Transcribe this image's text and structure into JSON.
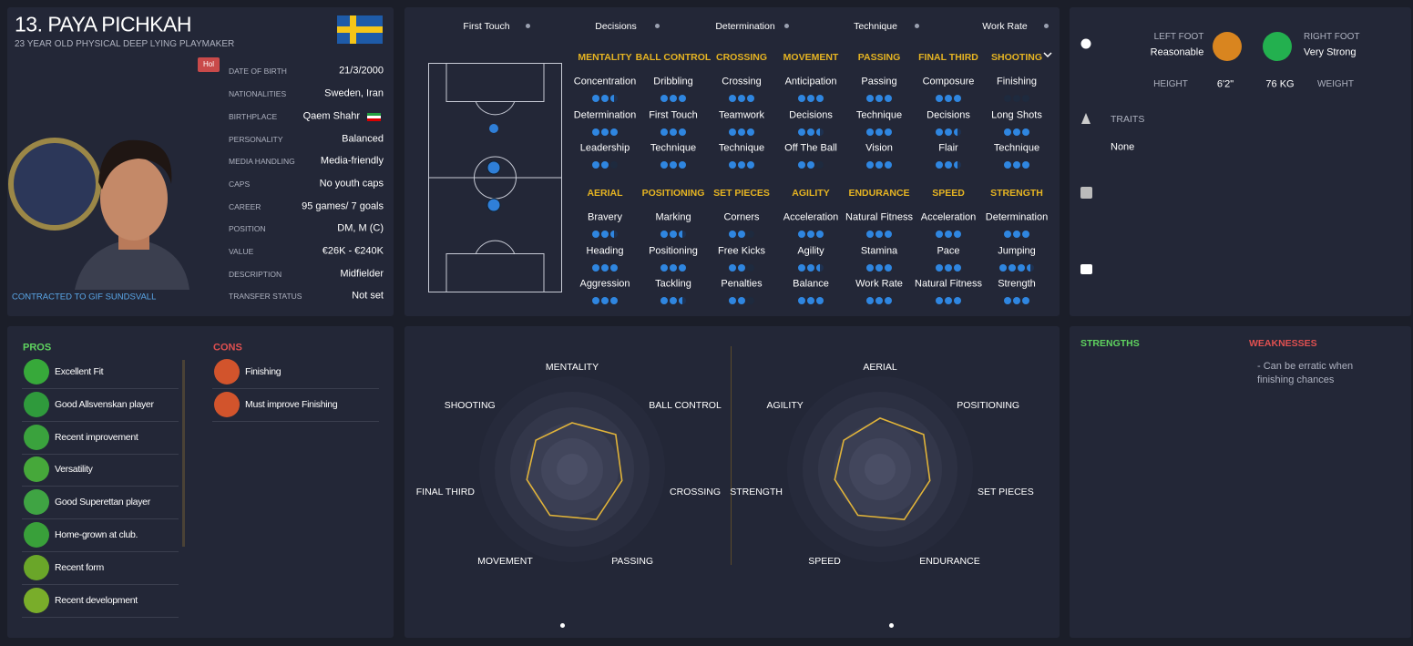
{
  "header": {
    "name": "13. PAYA PICHKAH",
    "subtitle": "23 YEAR OLD PHYSICAL DEEP LYING PLAYMAKER",
    "badge": "Hol",
    "contract": "CONTRACTED TO GIF SUNDSVALL"
  },
  "details": [
    [
      "DATE OF BIRTH",
      "21/3/2000"
    ],
    [
      "NATIONALITIES",
      "Sweden, Iran"
    ],
    [
      "BIRTHPLACE",
      "Qaem Shahr"
    ],
    [
      "PERSONALITY",
      "Balanced"
    ],
    [
      "MEDIA HANDLING",
      "Media-friendly"
    ],
    [
      "CAPS",
      "No youth caps"
    ],
    [
      "CAREER",
      "95 games/ 7 goals"
    ],
    [
      "POSITION",
      "DM, M (C)"
    ],
    [
      "VALUE",
      "€26K - €240K"
    ],
    [
      "DESCRIPTION",
      "Midfielder"
    ],
    [
      "TRANSFER STATUS",
      "Not set"
    ]
  ],
  "key_attributes": [
    "First Touch",
    "Decisions",
    "Determination",
    "Technique",
    "Work Rate"
  ],
  "attribute_groups": [
    {
      "name": "MENTALITY",
      "attributes": [
        {
          "name": "Concentration",
          "rating": 2.5
        },
        {
          "name": "Determination",
          "rating": 3
        },
        {
          "name": "Leadership",
          "rating": 2
        }
      ]
    },
    {
      "name": "BALL CONTROL",
      "attributes": [
        {
          "name": "Dribbling",
          "rating": 3
        },
        {
          "name": "First Touch",
          "rating": 3
        },
        {
          "name": "Technique",
          "rating": 3
        }
      ]
    },
    {
      "name": "CROSSING",
      "attributes": [
        {
          "name": "Crossing",
          "rating": 3
        },
        {
          "name": "Teamwork",
          "rating": 3
        },
        {
          "name": "Technique",
          "rating": 3
        }
      ]
    },
    {
      "name": "MOVEMENT",
      "attributes": [
        {
          "name": "Anticipation",
          "rating": 3
        },
        {
          "name": "Decisions",
          "rating": 2.5
        },
        {
          "name": "Off The Ball",
          "rating": 2
        }
      ]
    },
    {
      "name": "PASSING",
      "attributes": [
        {
          "name": "Passing",
          "rating": 3
        },
        {
          "name": "Technique",
          "rating": 3
        },
        {
          "name": "Vision",
          "rating": 3
        }
      ]
    },
    {
      "name": "FINAL THIRD",
      "attributes": [
        {
          "name": "Composure",
          "rating": 3
        },
        {
          "name": "Decisions",
          "rating": 2.5
        },
        {
          "name": "Flair",
          "rating": 2.5
        }
      ]
    },
    {
      "name": "SHOOTING",
      "attributes": [
        {
          "name": "Finishing",
          "rating": 0
        },
        {
          "name": "Long Shots",
          "rating": 3
        },
        {
          "name": "Technique",
          "rating": 3
        }
      ]
    },
    {
      "name": "AERIAL",
      "attributes": [
        {
          "name": "Bravery",
          "rating": 2.5
        },
        {
          "name": "Heading",
          "rating": 3
        },
        {
          "name": "Aggression",
          "rating": 3
        }
      ]
    },
    {
      "name": "POSITIONING",
      "attributes": [
        {
          "name": "Marking",
          "rating": 2.5
        },
        {
          "name": "Positioning",
          "rating": 3
        },
        {
          "name": "Tackling",
          "rating": 2.5
        }
      ]
    },
    {
      "name": "SET PIECES",
      "attributes": [
        {
          "name": "Corners",
          "rating": 2
        },
        {
          "name": "Free Kicks",
          "rating": 2
        },
        {
          "name": "Penalties",
          "rating": 2
        }
      ]
    },
    {
      "name": "AGILITY",
      "attributes": [
        {
          "name": "Acceleration",
          "rating": 3
        },
        {
          "name": "Agility",
          "rating": 2.5
        },
        {
          "name": "Balance",
          "rating": 3
        }
      ]
    },
    {
      "name": "ENDURANCE",
      "attributes": [
        {
          "name": "Natural Fitness",
          "rating": 3
        },
        {
          "name": "Stamina",
          "rating": 3
        },
        {
          "name": "Work Rate",
          "rating": 3
        }
      ]
    },
    {
      "name": "SPEED",
      "attributes": [
        {
          "name": "Acceleration",
          "rating": 3
        },
        {
          "name": "Pace",
          "rating": 3
        },
        {
          "name": "Natural Fitness",
          "rating": 3
        }
      ]
    },
    {
      "name": "STRENGTH",
      "attributes": [
        {
          "name": "Determination",
          "rating": 3
        },
        {
          "name": "Jumping",
          "rating": 3.5
        },
        {
          "name": "Strength",
          "rating": 3
        }
      ]
    }
  ],
  "radars": [
    {
      "rlim": [
        0,
        20
      ],
      "axes": [
        "MENTALITY",
        "BALL CONTROL",
        "CROSSING",
        "PASSING",
        "MOVEMENT",
        "FINAL THIRD",
        "SHOOTING"
      ],
      "values": [
        10,
        12,
        11,
        12,
        11,
        10,
        10
      ],
      "color": "#e0b33a"
    },
    {
      "rlim": [
        0,
        20
      ],
      "axes": [
        "AERIAL",
        "POSITIONING",
        "SET PIECES",
        "ENDURANCE",
        "SPEED",
        "STRENGTH",
        "AGILITY"
      ],
      "values": [
        11,
        12,
        11,
        12,
        11,
        10,
        10
      ],
      "color": "#e0b33a"
    }
  ],
  "pros_label": "PROS",
  "pros": [
    "Excellent Fit",
    "Good Allsvenskan player",
    "Recent improvement",
    "Versatility",
    "Good Superettan player",
    "Home-grown at club.",
    "Recent form",
    "Recent development"
  ],
  "cons_label": "CONS",
  "cons": [
    "Finishing",
    "Must improve Finishing"
  ],
  "profile": {
    "left_foot_label": "LEFT FOOT",
    "left_foot": "Reasonable",
    "right_foot_label": "RIGHT FOOT",
    "right_foot": "Very Strong",
    "height_label": "HEIGHT",
    "height": "6'2\"",
    "weight": "76 KG",
    "weight_label": "WEIGHT",
    "traits_label": "TRAITS",
    "traits": "None"
  },
  "strengths_label": "STRENGTHS",
  "weaknesses_label": "WEAKNESSES",
  "weaknesses": [
    "- Can be erratic when finishing chances"
  ]
}
